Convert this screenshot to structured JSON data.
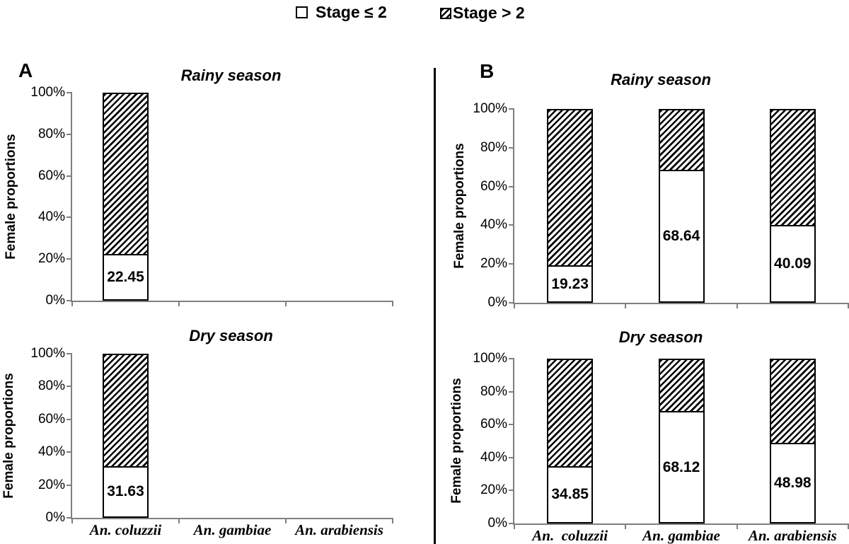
{
  "legend": {
    "items": [
      {
        "swatch": "empty-square",
        "label": "Stage ≤ 2"
      },
      {
        "swatch": "hatched-square",
        "label": "Stage > 2"
      }
    ]
  },
  "panels": [
    {
      "label": "A"
    },
    {
      "label": "B"
    }
  ],
  "colors": {
    "background": "#ffffff",
    "text": "#000000",
    "axis": "#7f7f7f",
    "bar_border": "#000000",
    "hatch": "#000000",
    "divider": "#000000"
  },
  "chart_data": [
    {
      "panel": "A",
      "type": "bar",
      "stacked": true,
      "title": "Rainy season",
      "ylabel": "Female proportions",
      "ylim": [
        0,
        100
      ],
      "yticks": [
        "100%",
        "80%",
        "60%",
        "40%",
        "20%",
        "0%"
      ],
      "categories": [
        "An. coluzzii",
        "An. gambiae",
        "An. arabiensis"
      ],
      "show_category_labels": false,
      "series": [
        {
          "name": "Stage ≤ 2",
          "values": [
            22.45,
            null,
            null
          ]
        },
        {
          "name": "Stage > 2",
          "values": [
            77.55,
            null,
            null
          ]
        }
      ],
      "value_labels": [
        "22.45",
        null,
        null
      ]
    },
    {
      "panel": "A",
      "type": "bar",
      "stacked": true,
      "title": "Dry season",
      "ylabel": "Female proportions",
      "ylim": [
        0,
        100
      ],
      "yticks": [
        "100%",
        "80%",
        "60%",
        "40%",
        "20%",
        "0%"
      ],
      "categories": [
        "An. coluzzii",
        "An. gambiae",
        "An. arabiensis"
      ],
      "show_category_labels": true,
      "series": [
        {
          "name": "Stage ≤ 2",
          "values": [
            31.63,
            null,
            null
          ]
        },
        {
          "name": "Stage > 2",
          "values": [
            68.37,
            null,
            null
          ]
        }
      ],
      "value_labels": [
        "31.63",
        null,
        null
      ]
    },
    {
      "panel": "B",
      "type": "bar",
      "stacked": true,
      "title": "Rainy season",
      "ylabel": "Female proportions",
      "ylim": [
        0,
        100
      ],
      "yticks": [
        "100%",
        "80%",
        "60%",
        "40%",
        "20%",
        "0%"
      ],
      "categories": [
        "An. coluzzii",
        "An. gambiae",
        "An. arabiensis"
      ],
      "show_category_labels": false,
      "series": [
        {
          "name": "Stage ≤ 2",
          "values": [
            19.23,
            68.64,
            40.09
          ]
        },
        {
          "name": "Stage > 2",
          "values": [
            80.77,
            31.36,
            59.91
          ]
        }
      ],
      "value_labels": [
        "19.23",
        "68.64",
        "40.09"
      ]
    },
    {
      "panel": "B",
      "type": "bar",
      "stacked": true,
      "title": "Dry season",
      "ylabel": "Female proportions",
      "ylim": [
        0,
        100
      ],
      "yticks": [
        "100%",
        "80%",
        "60%",
        "40%",
        "20%",
        "0%"
      ],
      "categories": [
        "An.  coluzzii",
        "An. gambiae",
        "An. arabiensis"
      ],
      "show_category_labels": true,
      "series": [
        {
          "name": "Stage ≤ 2",
          "values": [
            34.85,
            68.12,
            48.98
          ]
        },
        {
          "name": "Stage > 2",
          "values": [
            65.15,
            31.88,
            51.02
          ]
        }
      ],
      "value_labels": [
        "34.85",
        "68.12",
        "48.98"
      ]
    }
  ]
}
